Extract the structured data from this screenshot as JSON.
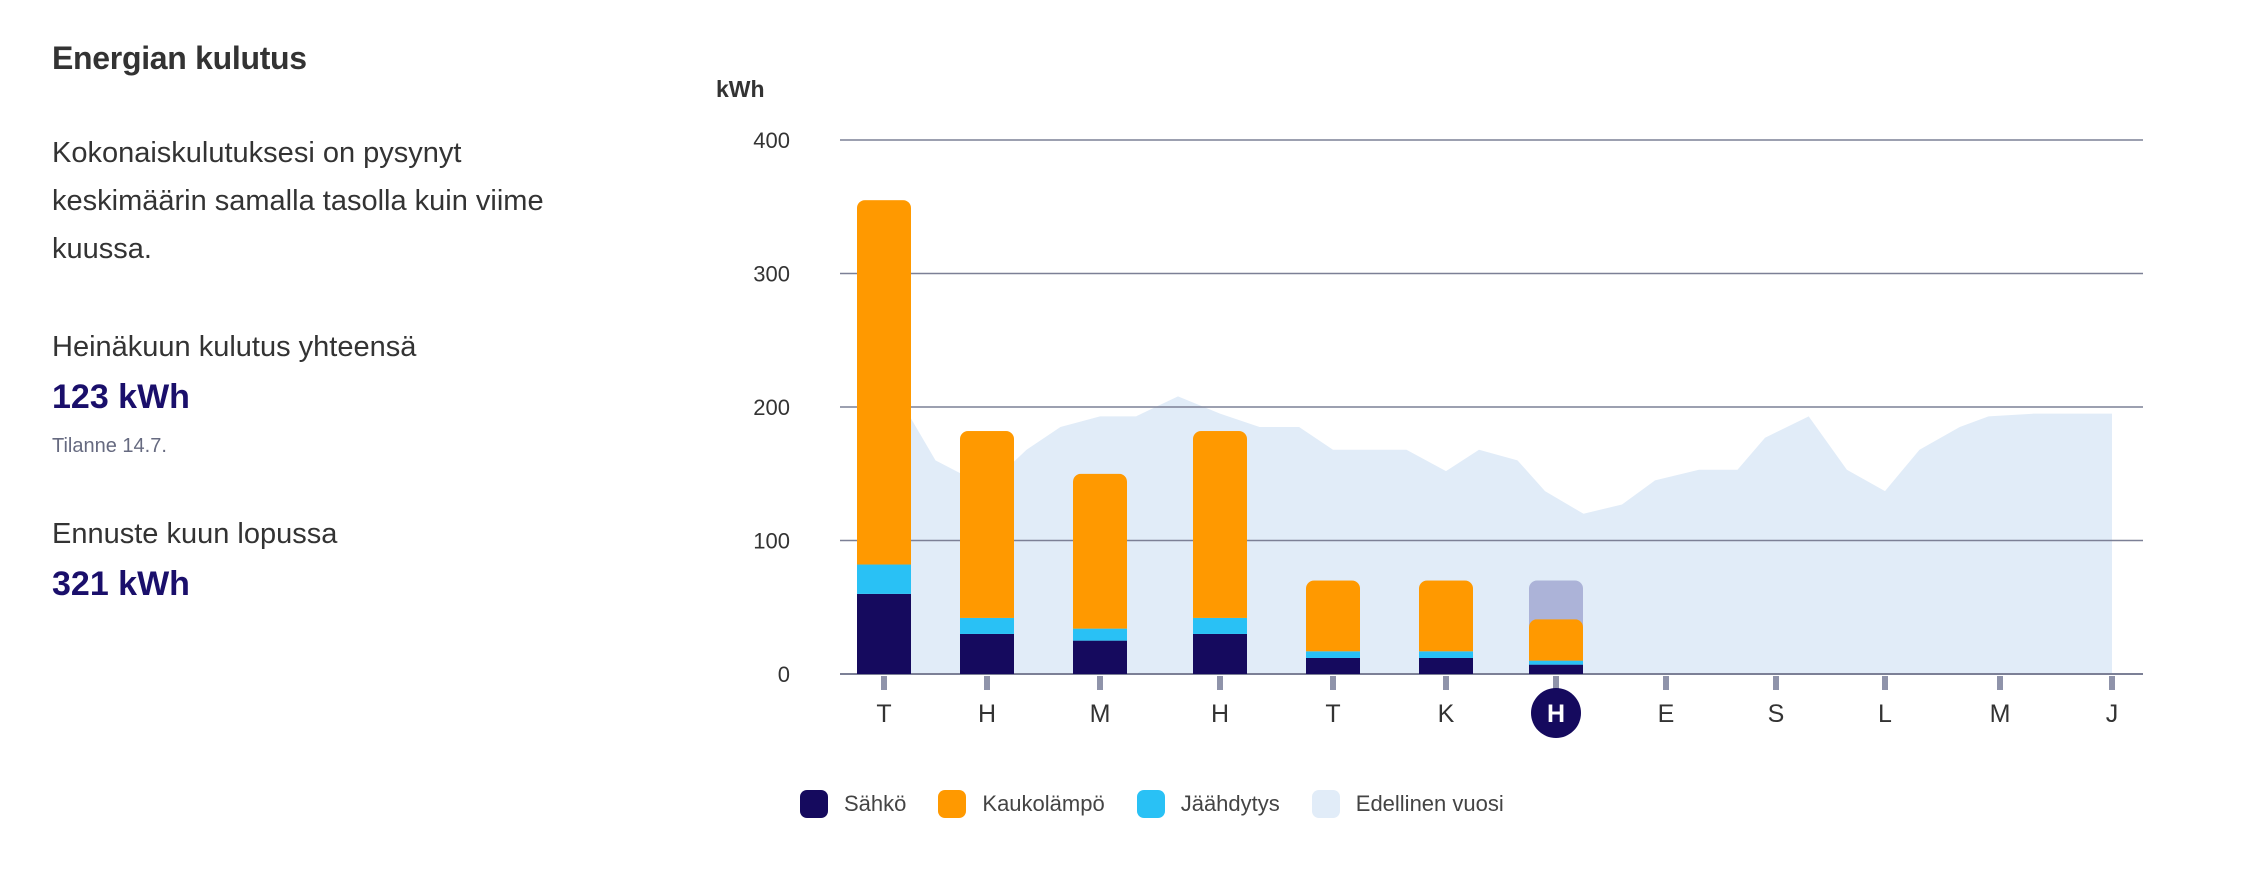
{
  "panel": {
    "title": "Energian kulutus",
    "description": "Kokonaiskulutuksesi on pysynyt keskimäärin samalla tasolla kuin viime kuussa.",
    "month_total_label": "Heinäkuun kulutus yhteensä",
    "month_total_value": "123 kWh",
    "status": "Tilanne 14.7.",
    "forecast_label": "Ennuste kuun lopussa",
    "forecast_value": "321 kWh"
  },
  "colors": {
    "sahko": "#150a5e",
    "kaukolampo": "#ff9900",
    "jaahdytys": "#29c1f5",
    "edellinen": "#e1ecf8",
    "forecast": "#acb3d8",
    "grid": "#7c8096",
    "tick": "#8f93aa"
  },
  "chart_data": {
    "type": "bar",
    "ylabel": "kWh",
    "ylim": [
      0,
      400
    ],
    "yticks": [
      0,
      100,
      200,
      300,
      400
    ],
    "grid": true,
    "legend_position": "bottom",
    "categories": [
      "T",
      "H",
      "M",
      "H",
      "T",
      "K",
      "H",
      "E",
      "S",
      "L",
      "M",
      "J"
    ],
    "highlighted_category_index": 6,
    "series": [
      {
        "name": "Sähkö",
        "key": "sahko",
        "values": [
          60,
          30,
          25,
          30,
          12,
          12,
          7,
          null,
          null,
          null,
          null,
          null
        ]
      },
      {
        "name": "Jäähdytys",
        "key": "jaahdytys",
        "values": [
          22,
          12,
          9,
          12,
          5,
          5,
          3,
          null,
          null,
          null,
          null,
          null
        ]
      },
      {
        "name": "Kaukolämpö",
        "key": "kaukolampo",
        "values": [
          273,
          140,
          116,
          140,
          53,
          53,
          31,
          null,
          null,
          null,
          null,
          null
        ]
      }
    ],
    "forecast": {
      "category_index": 6,
      "total": 70
    },
    "previous_year": {
      "name": "Edellinen vuosi",
      "x": [
        -0.15,
        0.25,
        0.5,
        1.0,
        1.35,
        1.65,
        2.0,
        2.3,
        2.65,
        3.0,
        3.35,
        3.7,
        4.0,
        4.3,
        4.65,
        5.0,
        5.3,
        5.65,
        5.9,
        6.25,
        6.6,
        6.9,
        7.3,
        7.65,
        7.9,
        8.3,
        8.65,
        9.0,
        9.3,
        9.65,
        9.9,
        10.3,
        10.65,
        11.0
      ],
      "y": [
        180,
        193,
        160,
        140,
        168,
        185,
        193,
        193,
        208,
        195,
        185,
        185,
        168,
        168,
        168,
        152,
        168,
        160,
        137,
        120,
        127,
        145,
        153,
        153,
        177,
        193,
        153,
        137,
        168,
        185,
        193,
        195,
        195,
        195
      ]
    }
  }
}
